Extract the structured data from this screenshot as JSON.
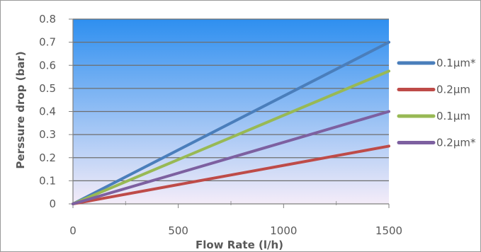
{
  "chart_data": {
    "type": "line",
    "title": "",
    "xlabel": "Flow Rate (l/h)",
    "ylabel": "Perssure drop (bar)",
    "xlim": [
      0,
      1500
    ],
    "ylim": [
      0,
      0.8
    ],
    "x_ticks": [
      "0",
      "500",
      "1000",
      "1500"
    ],
    "y_ticks": [
      "0",
      "0.1",
      "0.2",
      "0.3",
      "0.4",
      "0.5",
      "0.6",
      "0.7",
      "0.8"
    ],
    "grid": true,
    "legend_position": "right",
    "x": [
      0,
      1500
    ],
    "series": [
      {
        "name": "0.1µm*",
        "color": "#4a7ebb",
        "values": [
          0,
          0.7
        ]
      },
      {
        "name": "0.2µm",
        "color": "#be4b48",
        "values": [
          0,
          0.25
        ]
      },
      {
        "name": "0.1µm",
        "color": "#98b954",
        "values": [
          0,
          0.575
        ]
      },
      {
        "name": "0.2µm*",
        "color": "#7d60a0",
        "values": [
          0,
          0.4
        ]
      }
    ],
    "plot_background": {
      "top_color": "#2e8ff0",
      "bottom_color": "#f4ecf8"
    }
  }
}
